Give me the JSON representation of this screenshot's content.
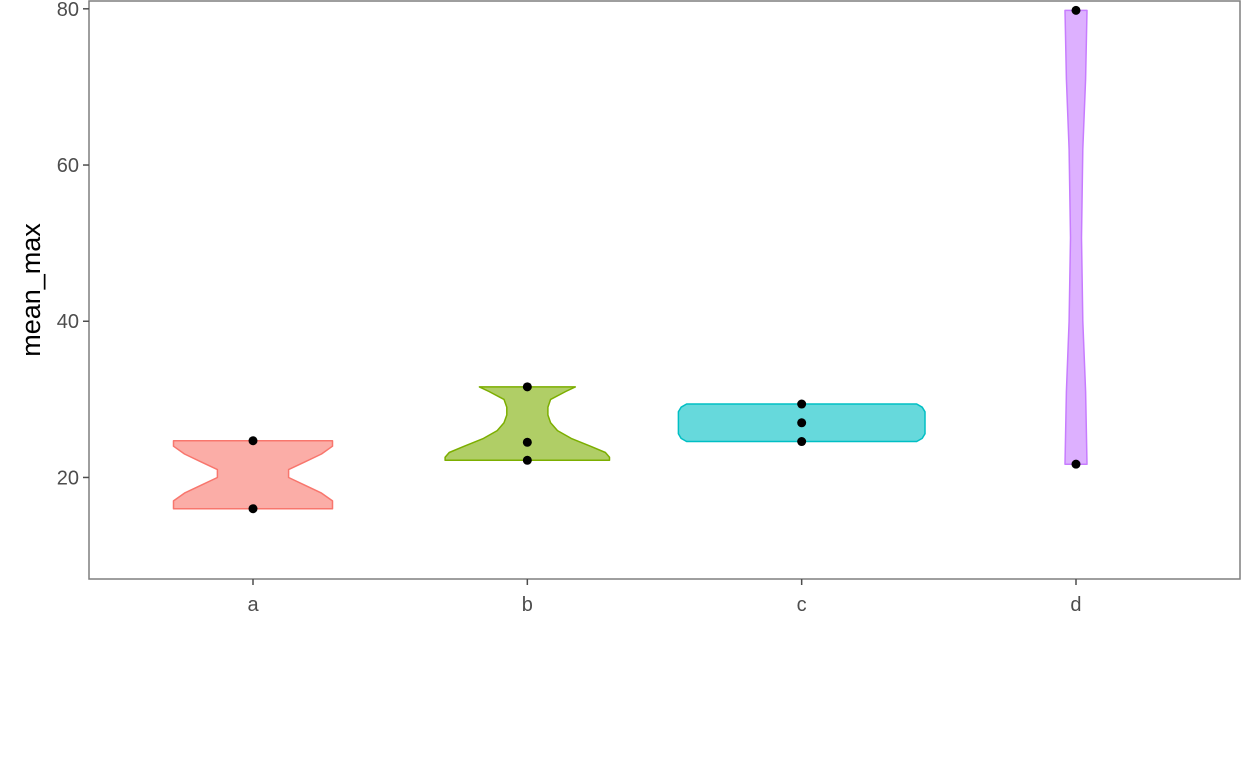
{
  "chart_data": {
    "type": "violin",
    "xlabel": "",
    "ylabel": "mean_max",
    "ylim": [
      7,
      81
    ],
    "yticks": [
      20,
      40,
      60,
      80
    ],
    "ytick_labels": [
      "20",
      "40",
      "60",
      "80"
    ],
    "categories": [
      "a",
      "b",
      "c",
      "d"
    ],
    "grid": false,
    "legend": "none",
    "groups": [
      {
        "category": "a",
        "fill": "#F8766D",
        "points": [
          24.7,
          16.0
        ],
        "density": [
          [
            16.0,
            0.58
          ],
          [
            17.0,
            0.58
          ],
          [
            18.0,
            0.5
          ],
          [
            19.0,
            0.38
          ],
          [
            20.0,
            0.26
          ],
          [
            21.0,
            0.26
          ],
          [
            22.0,
            0.38
          ],
          [
            23.0,
            0.5
          ],
          [
            24.0,
            0.58
          ],
          [
            24.7,
            0.58
          ]
        ]
      },
      {
        "category": "b",
        "fill": "#7CAE00",
        "points": [
          31.6,
          24.5,
          22.2
        ],
        "density": [
          [
            22.2,
            0.6
          ],
          [
            22.6,
            0.6
          ],
          [
            23.2,
            0.57
          ],
          [
            24.0,
            0.46
          ],
          [
            25.0,
            0.32
          ],
          [
            26.0,
            0.22
          ],
          [
            27.0,
            0.17
          ],
          [
            28.0,
            0.15
          ],
          [
            29.0,
            0.15
          ],
          [
            30.0,
            0.17
          ],
          [
            31.0,
            0.28
          ],
          [
            31.6,
            0.35
          ]
        ]
      },
      {
        "category": "c",
        "fill": "#00BFC4",
        "points": [
          29.4,
          27.0,
          24.6
        ],
        "density": [
          [
            24.6,
            0.84
          ],
          [
            25.0,
            0.88
          ],
          [
            25.6,
            0.9
          ],
          [
            27.0,
            0.9
          ],
          [
            28.4,
            0.9
          ],
          [
            29.0,
            0.88
          ],
          [
            29.4,
            0.84
          ]
        ]
      },
      {
        "category": "d",
        "fill": "#C77CFF",
        "points": [
          79.8,
          21.7
        ],
        "density": [
          [
            21.7,
            0.08
          ],
          [
            31.0,
            0.07
          ],
          [
            40.0,
            0.05
          ],
          [
            50.7,
            0.04
          ],
          [
            62.0,
            0.05
          ],
          [
            71.0,
            0.07
          ],
          [
            79.8,
            0.08
          ]
        ]
      }
    ]
  }
}
